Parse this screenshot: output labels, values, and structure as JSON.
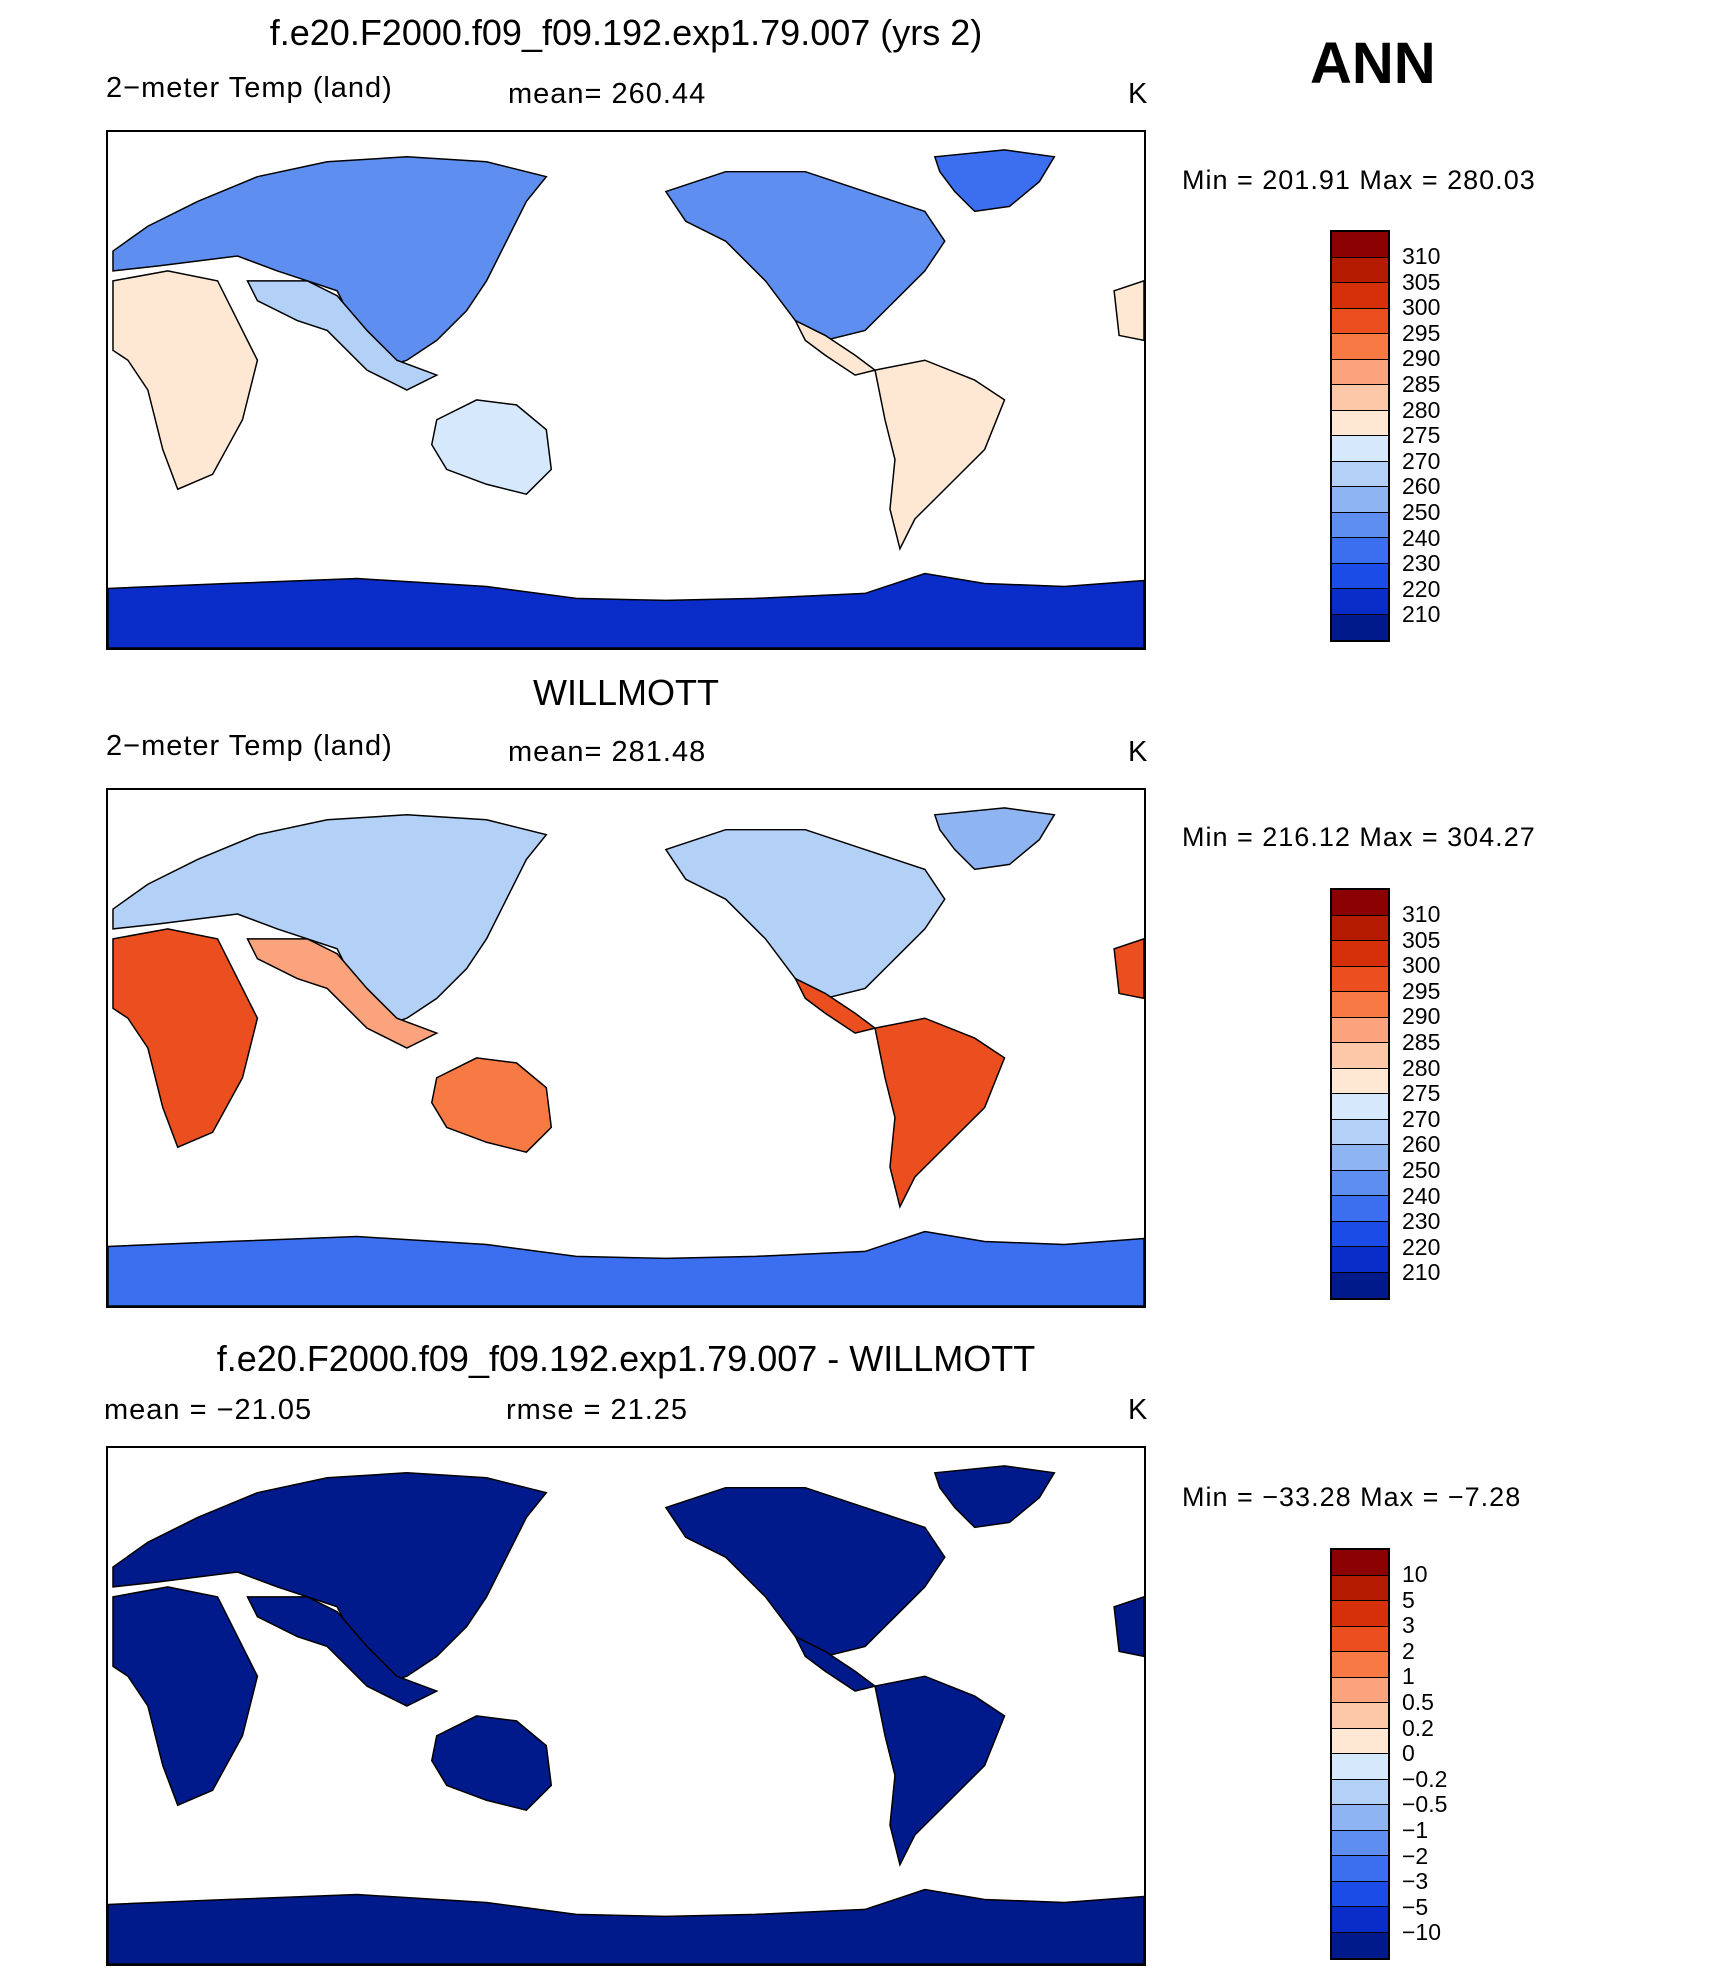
{
  "season": "ANN",
  "panels": [
    {
      "title": "f.e20.F2000.f09_f09.192.exp1.79.007 (yrs 2)",
      "left_label": "2−meter Temp (land)",
      "center_label": "mean=  260.44",
      "units": "K",
      "minmax": "Min  =  201.91  Max  =  280.03",
      "palette": "model"
    },
    {
      "title": "WILLMOTT",
      "left_label": "2−meter Temp (land)",
      "center_label": "mean=  281.48",
      "units": "K",
      "minmax": "Min  =  216.12  Max  =  304.27",
      "palette": "obs"
    },
    {
      "title": "f.e20.F2000.f09_f09.192.exp1.79.007 - WILLMOTT",
      "left_label": "mean  =  −21.05",
      "center_label": "rmse  =    21.25",
      "units": "K",
      "minmax": "Min  =  −33.28  Max  =    −7.28",
      "palette": "diff"
    }
  ],
  "colorbars": {
    "temp": {
      "labels": [
        "310",
        "305",
        "300",
        "295",
        "290",
        "285",
        "280",
        "275",
        "270",
        "260",
        "250",
        "240",
        "230",
        "220",
        "210"
      ],
      "colors": [
        "#8b0000",
        "#b51b00",
        "#d6300a",
        "#ec4f1f",
        "#f77a45",
        "#fba37c",
        "#fdc8a8",
        "#fee8d4",
        "#d6e8fb",
        "#b3d1f7",
        "#8fb4f2",
        "#5e8ff0",
        "#3c6ef0",
        "#1c4ce8",
        "#0a2cc8",
        "#001a8c"
      ]
    },
    "diff": {
      "labels": [
        "10",
        "5",
        "3",
        "2",
        "1",
        "0.5",
        "0.2",
        "0",
        "−0.2",
        "−0.5",
        "−1",
        "−2",
        "−3",
        "−5",
        "−10"
      ],
      "colors": [
        "#8b0000",
        "#b51b00",
        "#d6300a",
        "#ec4f1f",
        "#f77a45",
        "#fba37c",
        "#fdc8a8",
        "#fee8d4",
        "#d6e8fb",
        "#b3d1f7",
        "#8fb4f2",
        "#5e8ff0",
        "#3c6ef0",
        "#1c4ce8",
        "#0a2cc8",
        "#001a8c"
      ]
    }
  },
  "map_colors": {
    "model": {
      "north": "#5e8ff0",
      "mid": "#b3d1f7",
      "tropic": "#fee8d4",
      "south": "#d6e8fb",
      "greenland": "#3c6ef0",
      "antarctica": "#0a2cc8"
    },
    "obs": {
      "north": "#b3d1f7",
      "mid": "#fba37c",
      "tropic": "#ec4f1f",
      "south": "#f77a45",
      "greenland": "#8fb4f2",
      "antarctica": "#3c6ef0"
    },
    "diff": {
      "north": "#001a8c",
      "mid": "#001a8c",
      "tropic": "#001a8c",
      "south": "#001a8c",
      "greenland": "#001a8c",
      "antarctica": "#001a8c"
    }
  }
}
